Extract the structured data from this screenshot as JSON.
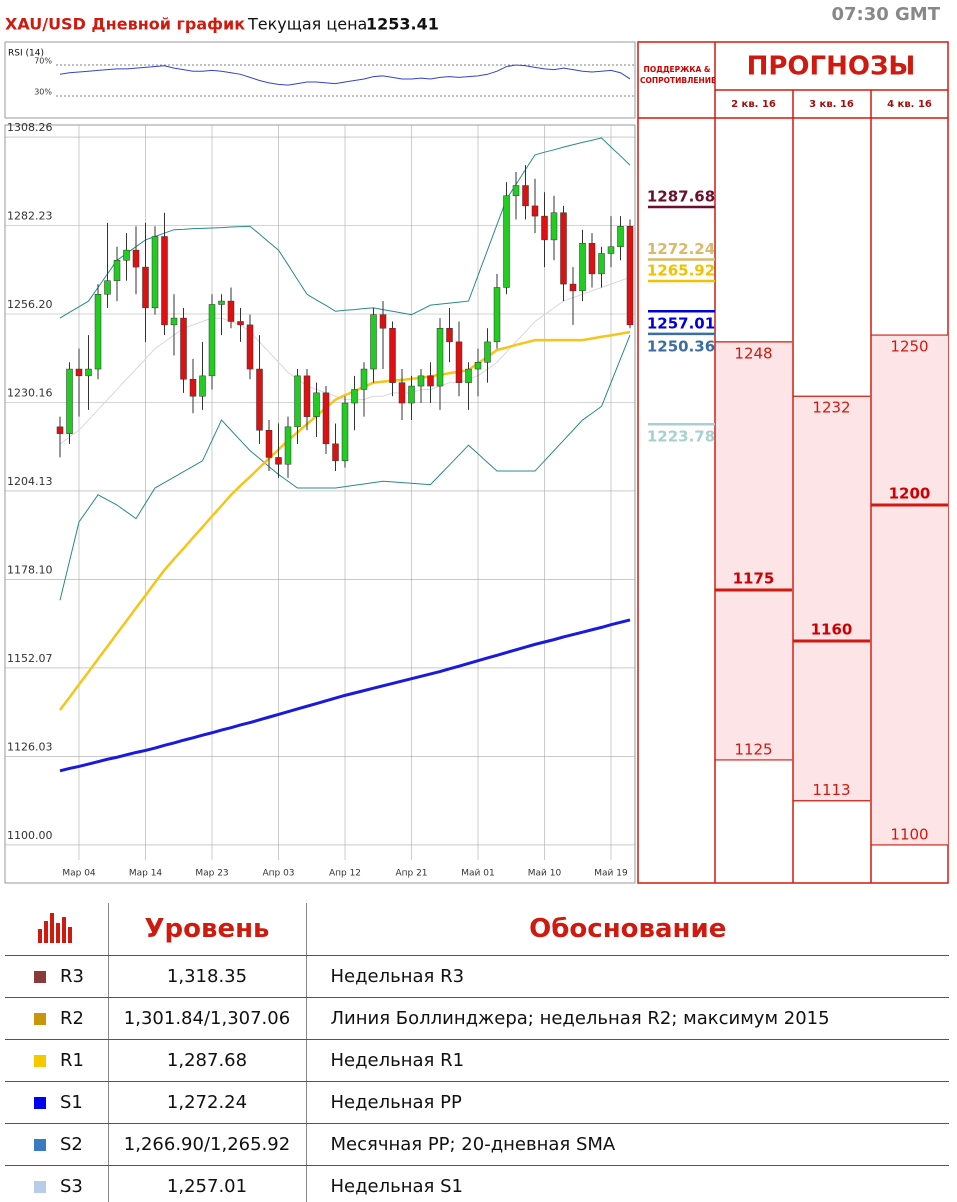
{
  "header": {
    "title": "XAU/USD Дневной график",
    "price_label": "Текущая цена",
    "price": "1253.41",
    "time": "07:30 GMT"
  },
  "chart_data": [
    {
      "type": "line",
      "title": "RSI (14)",
      "color": "#3344cc",
      "ylim": [
        1.6,
        99.7
      ],
      "yticks": [
        {
          "value": 70,
          "label": "70%"
        },
        {
          "value": 30,
          "label": "30%"
        }
      ],
      "values": [
        58,
        60,
        61,
        62,
        63,
        64,
        65,
        65,
        66,
        67,
        68,
        69,
        66,
        64,
        62,
        62,
        63,
        62,
        60,
        58,
        54,
        50,
        47,
        45,
        44,
        46,
        48,
        48,
        47,
        46,
        48,
        50,
        52,
        55,
        56,
        54,
        52,
        52,
        53,
        52,
        54,
        55,
        54,
        55,
        56,
        58,
        62,
        68,
        70,
        69,
        67,
        65,
        64,
        66,
        64,
        62,
        61,
        62,
        63,
        60,
        52
      ]
    },
    {
      "type": "candlestick",
      "up_color": "#22cc22",
      "down_color": "#dd1111",
      "ylim": [
        1088.8,
        1311.8
      ],
      "yticks": [
        1308.26,
        1282.23,
        {
          "value": 1256.2,
          "label": "1256.20"
        },
        1230.16,
        1204.13,
        {
          "value": 1178.1,
          "label": "1178.10"
        },
        1152.07,
        1126.03,
        {
          "value": 1100,
          "label": "1100.00"
        }
      ],
      "categories": [
        null,
        null,
        "Мар 04",
        null,
        null,
        null,
        null,
        null,
        null,
        "Мар 14",
        null,
        null,
        null,
        null,
        null,
        null,
        "Мар 23",
        null,
        null,
        null,
        null,
        null,
        null,
        "Апр 03",
        null,
        null,
        null,
        null,
        null,
        null,
        "Апр 12",
        null,
        null,
        null,
        null,
        null,
        null,
        "Апр 21",
        null,
        null,
        null,
        null,
        null,
        null,
        "Май 01",
        null,
        null,
        null,
        null,
        null,
        null,
        "Май 10",
        null,
        null,
        null,
        null,
        null,
        null,
        "Май 19",
        null,
        null
      ],
      "open": [
        1223,
        1221,
        1240,
        1238,
        1240,
        1262,
        1266,
        1272,
        1275,
        1270,
        1258,
        1279,
        1253,
        1255,
        1237,
        1232,
        1238,
        1259,
        1260,
        1254,
        1253,
        1240,
        1222,
        1214,
        1212,
        1223,
        1238,
        1226,
        1233,
        1218,
        1213,
        1230,
        1234,
        1240,
        1256,
        1252,
        1236,
        1230,
        1235,
        1238,
        1235,
        1252,
        1248,
        1236,
        1240,
        1242,
        1248,
        1264,
        1291,
        1294,
        1288,
        1285,
        1278,
        1286,
        1265,
        1263,
        1277,
        1268,
        1274,
        1276,
        1282
      ],
      "high": [
        1226,
        1242,
        1246,
        1250,
        1265,
        1283,
        1276,
        1280,
        1282,
        1283,
        1282,
        1286,
        1262,
        1258,
        1243,
        1248,
        1262,
        1262,
        1264,
        1258,
        1256,
        1250,
        1225,
        1224,
        1226,
        1240,
        1240,
        1236,
        1235,
        1224,
        1232,
        1238,
        1242,
        1258,
        1260,
        1254,
        1240,
        1238,
        1240,
        1242,
        1255,
        1258,
        1254,
        1242,
        1246,
        1252,
        1268,
        1295,
        1298,
        1300,
        1296,
        1292,
        1291,
        1288,
        1270,
        1281,
        1280,
        1276,
        1285,
        1285,
        1284
      ],
      "low": [
        1214,
        1218,
        1226,
        1228,
        1237,
        1258,
        1260,
        1266,
        1262,
        1248,
        1256,
        1250,
        1244,
        1233,
        1227,
        1228,
        1234,
        1250,
        1252,
        1248,
        1237,
        1218,
        1210,
        1208,
        1208,
        1218,
        1222,
        1220,
        1215,
        1210,
        1211,
        1222,
        1226,
        1236,
        1240,
        1232,
        1225,
        1225,
        1230,
        1230,
        1228,
        1242,
        1232,
        1228,
        1232,
        1236,
        1246,
        1262,
        1284,
        1284,
        1280,
        1270,
        1272,
        1260,
        1253,
        1260,
        1264,
        1264,
        1270,
        1272,
        1252
      ],
      "close": [
        1221,
        1240,
        1238,
        1240,
        1262,
        1266,
        1272,
        1275,
        1270,
        1258,
        1279,
        1253,
        1255,
        1237,
        1232,
        1238,
        1259,
        1260,
        1254,
        1253,
        1240,
        1222,
        1214,
        1212,
        1223,
        1238,
        1226,
        1233,
        1218,
        1213,
        1230,
        1234,
        1240,
        1256,
        1252,
        1236,
        1230,
        1235,
        1238,
        1235,
        1252,
        1248,
        1236,
        1240,
        1242,
        1248,
        1264,
        1291,
        1294,
        1288,
        1285,
        1278,
        1286,
        1265,
        1263,
        1277,
        1268,
        1274,
        1276,
        1282,
        1253
      ],
      "indicators": [
        {
          "color": "#d8d8d8",
          "width": 1,
          "values": [
            1218,
            1220,
            1222,
            1225,
            1228,
            1231,
            1234,
            1237,
            1240,
            1243,
            1246,
            1248,
            1250,
            1252,
            1253,
            1254,
            1255,
            1255,
            1254,
            1253,
            1251,
            1248,
            1245,
            1242,
            1239,
            1237,
            1235,
            1234,
            1233,
            1232,
            1231,
            1231,
            1231,
            1232,
            1232,
            1233,
            1233,
            1233,
            1234,
            1234,
            1235,
            1236,
            1236,
            1237,
            1238,
            1240,
            1242,
            1245,
            1248,
            1251,
            1254,
            1256,
            1258,
            1260,
            1261,
            1262,
            1263,
            1264,
            1265,
            1266,
            1267
          ]
        },
        {
          "color": "#2a8a8a",
          "width": 1,
          "values": [
            1255,
            1256.7,
            1258.3,
            1260,
            1264,
            1268,
            1272,
            1274,
            1276,
            1278,
            1279,
            1280,
            1281,
            1281.1,
            1281.3,
            1281.4,
            1281.5,
            1281.6,
            1281.8,
            1281.9,
            1282,
            1279.7,
            1277.3,
            1275,
            1270.7,
            1266.3,
            1262,
            1260.3,
            1258.7,
            1257,
            1257.3,
            1257.5,
            1257.8,
            1258,
            1257.5,
            1257,
            1256.5,
            1256,
            1257.4,
            1258.8,
            1259.1,
            1259.4,
            1259.7,
            1260,
            1267.5,
            1275,
            1282.5,
            1290,
            1294.3,
            1298.7,
            1303,
            1303.8,
            1304.5,
            1305.3,
            1306,
            1306.7,
            1307.3,
            1308,
            1305.3,
            1302.7,
            1300
          ]
        },
        {
          "color": "#2a8a8a",
          "width": 1,
          "values": [
            1172,
            1183.5,
            1195,
            1199,
            1203,
            1201.5,
            1200,
            1198,
            1196,
            1200.5,
            1205,
            1206.6,
            1208.2,
            1209.8,
            1211.4,
            1213,
            1219,
            1225,
            1222,
            1219,
            1216,
            1213.7,
            1211.3,
            1209,
            1207,
            1205,
            1205,
            1205,
            1205,
            1205,
            1205.4,
            1205.8,
            1206.2,
            1206.6,
            1207,
            1206.8,
            1206.6,
            1206.4,
            1206.2,
            1206,
            1208.9,
            1211.8,
            1214.7,
            1217.6,
            1215.1,
            1212.5,
            1210,
            1210,
            1210,
            1210,
            1210,
            1213,
            1216,
            1219,
            1222,
            1225,
            1227,
            1229,
            1236,
            1243,
            1250
          ]
        },
        {
          "color": "#f5c518",
          "width": 2.5,
          "values": [
            1139.7,
            1143.4,
            1147.2,
            1150.9,
            1154.7,
            1158.4,
            1162.2,
            1165.9,
            1169.7,
            1173.4,
            1177.2,
            1180.9,
            1184.1,
            1187.2,
            1190.4,
            1193.5,
            1196.7,
            1199.8,
            1203.0,
            1205.7,
            1208.3,
            1211.0,
            1213.7,
            1216.3,
            1219.0,
            1221.4,
            1223.8,
            1226.2,
            1228.6,
            1231.0,
            1232.3,
            1233.5,
            1234.8,
            1236.0,
            1236.3,
            1236.6,
            1236.8,
            1237.1,
            1237.4,
            1237.9,
            1238.3,
            1238.8,
            1239.2,
            1239.7,
            1241.7,
            1243.6,
            1245.6,
            1246.3,
            1247.1,
            1247.8,
            1248.5,
            1248.5,
            1248.5,
            1248.5,
            1248.5,
            1248.5,
            1249.0,
            1249.5,
            1249.9,
            1250.4,
            1250.9
          ]
        },
        {
          "color": "#1a1adc",
          "width": 3,
          "values": [
            1121.8,
            1122.5,
            1123.1,
            1123.8,
            1124.5,
            1125.2,
            1125.8,
            1126.5,
            1127.2,
            1127.8,
            1128.5,
            1129.3,
            1130.0,
            1130.8,
            1131.5,
            1132.3,
            1133.0,
            1133.8,
            1134.5,
            1135.3,
            1136.0,
            1136.8,
            1137.6,
            1138.4,
            1139.2,
            1140.0,
            1140.8,
            1141.6,
            1142.4,
            1143.2,
            1144.0,
            1144.7,
            1145.4,
            1146.1,
            1146.8,
            1147.5,
            1148.2,
            1148.9,
            1149.6,
            1150.3,
            1151.0,
            1151.8,
            1152.6,
            1153.4,
            1154.2,
            1155.0,
            1155.8,
            1156.6,
            1157.4,
            1158.2,
            1159.0,
            1159.7,
            1160.4,
            1161.2,
            1161.9,
            1162.6,
            1163.3,
            1164.0,
            1164.8,
            1165.5,
            1166.2
          ]
        }
      ],
      "levels_title": "ПОДДЕРЖКА & СОПРОТИВЛЕНИЕ",
      "levels": [
        {
          "value": 1287.68,
          "color": "#6b0f2a",
          "label_pos": "above"
        },
        {
          "value": 1272.24,
          "color": "#d9b96a",
          "label_pos": "above"
        },
        {
          "value": 1265.92,
          "color": "#f2c200",
          "label_pos": "above"
        },
        {
          "value": 1257.01,
          "color": "#0000dd",
          "label_pos": "below"
        },
        {
          "value": 1250.36,
          "color": "#3b6ea5",
          "label_pos": "below"
        },
        {
          "value": 1223.78,
          "color": "#a8d0d0",
          "label_pos": "below"
        }
      ],
      "forecast_title": "ПРОГНОЗЫ",
      "forecasts": [
        {
          "label": "2 кв. 16",
          "high": 1248,
          "mid": 1175,
          "low": 1125
        },
        {
          "label": "3 кв. 16",
          "high": 1232,
          "mid": 1160,
          "low": 1113
        },
        {
          "label": "4 кв. 16",
          "high": 1250,
          "mid": 1200,
          "low": 1100
        }
      ]
    }
  ],
  "table": {
    "headers": [
      "Уровень",
      "Обоснование"
    ],
    "rows": [
      {
        "name": "R3",
        "color": "#8b3a3a",
        "level": "1,318.35",
        "reason": "Недельная R3"
      },
      {
        "name": "R2",
        "color": "#c8960a",
        "level": "1,301.84/1,307.06",
        "reason": "Линия Боллинджера; недельная R2; максимум 2015"
      },
      {
        "name": "R1",
        "color": "#f5c800",
        "level": "1,287.68",
        "reason": "Недельная R1"
      },
      {
        "name": "S1",
        "color": "#0000ee",
        "level": "1,272.24",
        "reason": "Недельная PP"
      },
      {
        "name": "S2",
        "color": "#3a7ac0",
        "level": "1,266.90/1,265.92",
        "reason": "Месячная PP; 20-дневная SMA"
      },
      {
        "name": "S3",
        "color": "#b8cce8",
        "level": "1,257.01",
        "reason": "Недельная S1"
      }
    ]
  }
}
